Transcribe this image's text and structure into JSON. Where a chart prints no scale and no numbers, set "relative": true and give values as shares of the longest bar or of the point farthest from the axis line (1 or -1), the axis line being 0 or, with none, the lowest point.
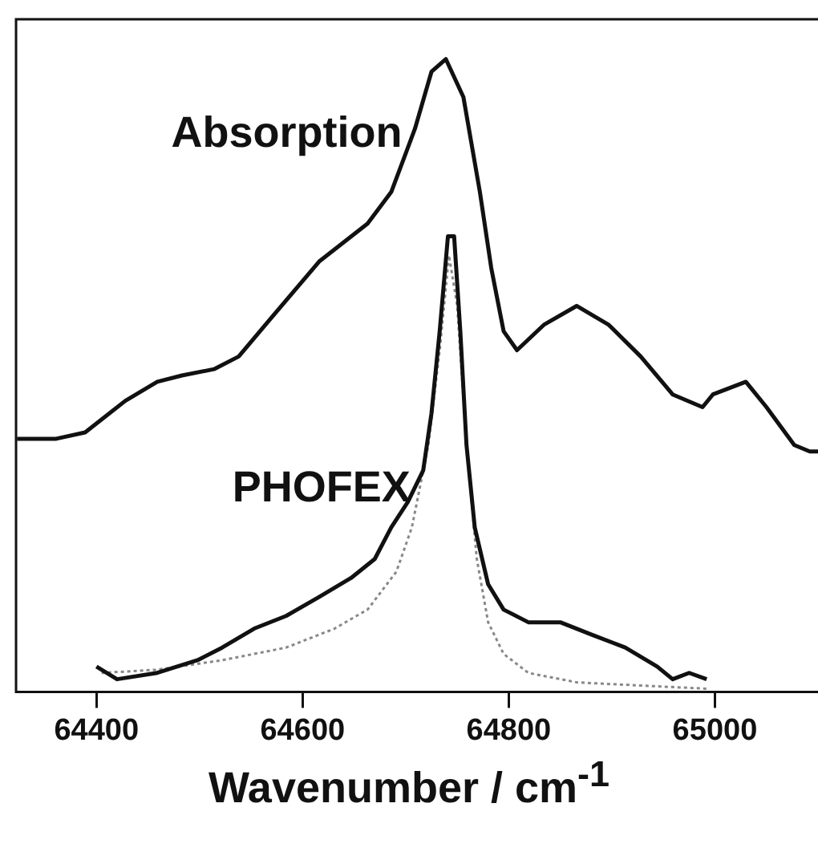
{
  "chart_data": {
    "type": "line",
    "xlabel": "Wavenumber / cm$^{-1}$",
    "relative": true,
    "xlim": [
      64322,
      65100
    ],
    "xticks": [
      64400,
      64600,
      64800,
      65000
    ],
    "tick_labels": "x",
    "grid": false,
    "legend": false,
    "marker": "none",
    "series": [
      {
        "name": "Absorption",
        "color": "#111111",
        "line_style": "solid",
        "x": [
          64323,
          64361,
          64389,
          64428,
          64459,
          64483,
          64514,
          64538,
          64569,
          64616,
          64663,
          64686,
          64709,
          64725,
          64739,
          64756,
          64772,
          64783,
          64795,
          64808,
          64834,
          64866,
          64897,
          64928,
          64959,
          64988,
          64998,
          65030,
          65050,
          65077,
          65092,
          65100
        ],
        "values": [
          0.4,
          0.4,
          0.41,
          0.46,
          0.49,
          0.5,
          0.51,
          0.53,
          0.59,
          0.68,
          0.74,
          0.79,
          0.89,
          0.98,
          1.0,
          0.94,
          0.79,
          0.67,
          0.57,
          0.54,
          0.58,
          0.61,
          0.58,
          0.53,
          0.47,
          0.45,
          0.47,
          0.49,
          0.45,
          0.39,
          0.38,
          0.38
        ]
      },
      {
        "name": "PHOFEX",
        "color": "#111111",
        "line_style": "solid",
        "x": [
          64400,
          64420,
          64459,
          64498,
          64522,
          64553,
          64584,
          64616,
          64647,
          64670,
          64686,
          64702,
          64717,
          64725,
          64733,
          64741,
          64747,
          64753,
          64759,
          64767,
          64780,
          64795,
          64819,
          64850,
          64881,
          64913,
          64944,
          64959,
          64975,
          64992
        ],
        "values": [
          0.04,
          0.02,
          0.03,
          0.05,
          0.07,
          0.1,
          0.12,
          0.15,
          0.18,
          0.21,
          0.26,
          0.3,
          0.35,
          0.44,
          0.57,
          0.72,
          0.72,
          0.57,
          0.39,
          0.26,
          0.17,
          0.13,
          0.11,
          0.11,
          0.09,
          0.07,
          0.04,
          0.02,
          0.03,
          0.02
        ]
      },
      {
        "color": "#888888",
        "line_style": "dotted",
        "x": [
          64405,
          64459,
          64522,
          64584,
          64631,
          64663,
          64691,
          64706,
          64722,
          64733,
          64742,
          64750,
          64759,
          64769,
          64780,
          64795,
          64819,
          64866,
          64928,
          64992
        ],
        "values": [
          0.03,
          0.035,
          0.05,
          0.07,
          0.1,
          0.13,
          0.19,
          0.26,
          0.39,
          0.54,
          0.69,
          0.61,
          0.39,
          0.21,
          0.11,
          0.06,
          0.03,
          0.015,
          0.01,
          0.005
        ]
      }
    ]
  }
}
